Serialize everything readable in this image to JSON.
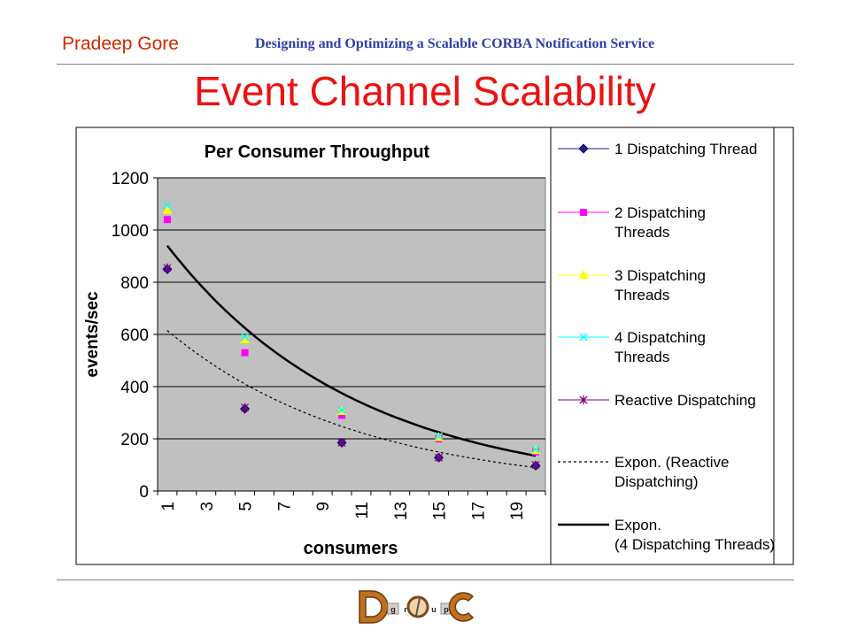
{
  "header": {
    "author": "Pradeep Gore",
    "subtitle": "Designing and Optimizing a Scalable CORBA Notification Service"
  },
  "slide": {
    "title": "Event Channel Scalability"
  },
  "logo": {
    "text": "DOC Group",
    "letters": [
      "D",
      "g",
      "r",
      "o",
      "u",
      "p",
      "C"
    ]
  },
  "colors": {
    "title": "#ee1111",
    "author": "#cc2a00",
    "subtitle": "#2f3fa8",
    "plot_background": "#c0c0c0",
    "series1": "#1f1f8f",
    "series2": "#ff00ff",
    "series3": "#ffff00",
    "series4": "#00ffff",
    "series5": "#800080",
    "trend": "#000000"
  },
  "chart_data": {
    "type": "scatter",
    "title": "Per Consumer Throughput",
    "xlabel": "consumers",
    "ylabel": "events/sec",
    "x_ticks": [
      "1",
      "3",
      "5",
      "7",
      "9",
      "11",
      "13",
      "15",
      "17",
      "19"
    ],
    "y_ticks": [
      "0",
      "200",
      "400",
      "600",
      "800",
      "1000",
      "1200"
    ],
    "xlim": [
      1,
      20
    ],
    "ylim": [
      0,
      1200
    ],
    "grid": true,
    "legend_position": "right",
    "series": [
      {
        "name": "1 Dispatching Thread",
        "marker": "diamond",
        "color": "#1f1f8f",
        "x": [
          1,
          5,
          10,
          15,
          20
        ],
        "y": [
          850,
          315,
          185,
          128,
          97
        ]
      },
      {
        "name": "2 Dispatching Threads",
        "marker": "square",
        "color": "#ff00ff",
        "x": [
          1,
          5,
          10,
          15,
          20
        ],
        "y": [
          1040,
          530,
          290,
          200,
          150
        ]
      },
      {
        "name": "3 Dispatching Threads",
        "marker": "triangle",
        "color": "#ffff00",
        "x": [
          1,
          5,
          10,
          15,
          20
        ],
        "y": [
          1075,
          580,
          305,
          205,
          155
        ]
      },
      {
        "name": "4 Dispatching Threads",
        "marker": "x",
        "color": "#00ffff",
        "x": [
          1,
          5,
          10,
          15,
          20
        ],
        "y": [
          1095,
          590,
          310,
          210,
          160
        ]
      },
      {
        "name": "Reactive Dispatching",
        "marker": "star",
        "color": "#800080",
        "x": [
          1,
          5,
          10,
          15,
          20
        ],
        "y": [
          855,
          320,
          185,
          128,
          100
        ]
      }
    ],
    "trendlines": [
      {
        "name": "Expon. (Reactive Dispatching)",
        "style": "dotted",
        "type": "exponential",
        "x": [
          1,
          5,
          10,
          15,
          20
        ],
        "y": [
          615,
          410,
          245,
          145,
          90
        ]
      },
      {
        "name": "Expon. (4 Dispatching Threads)",
        "style": "solid",
        "type": "exponential",
        "x": [
          1,
          5,
          10,
          15,
          20
        ],
        "y": [
          940,
          640,
          385,
          230,
          135
        ]
      }
    ]
  }
}
